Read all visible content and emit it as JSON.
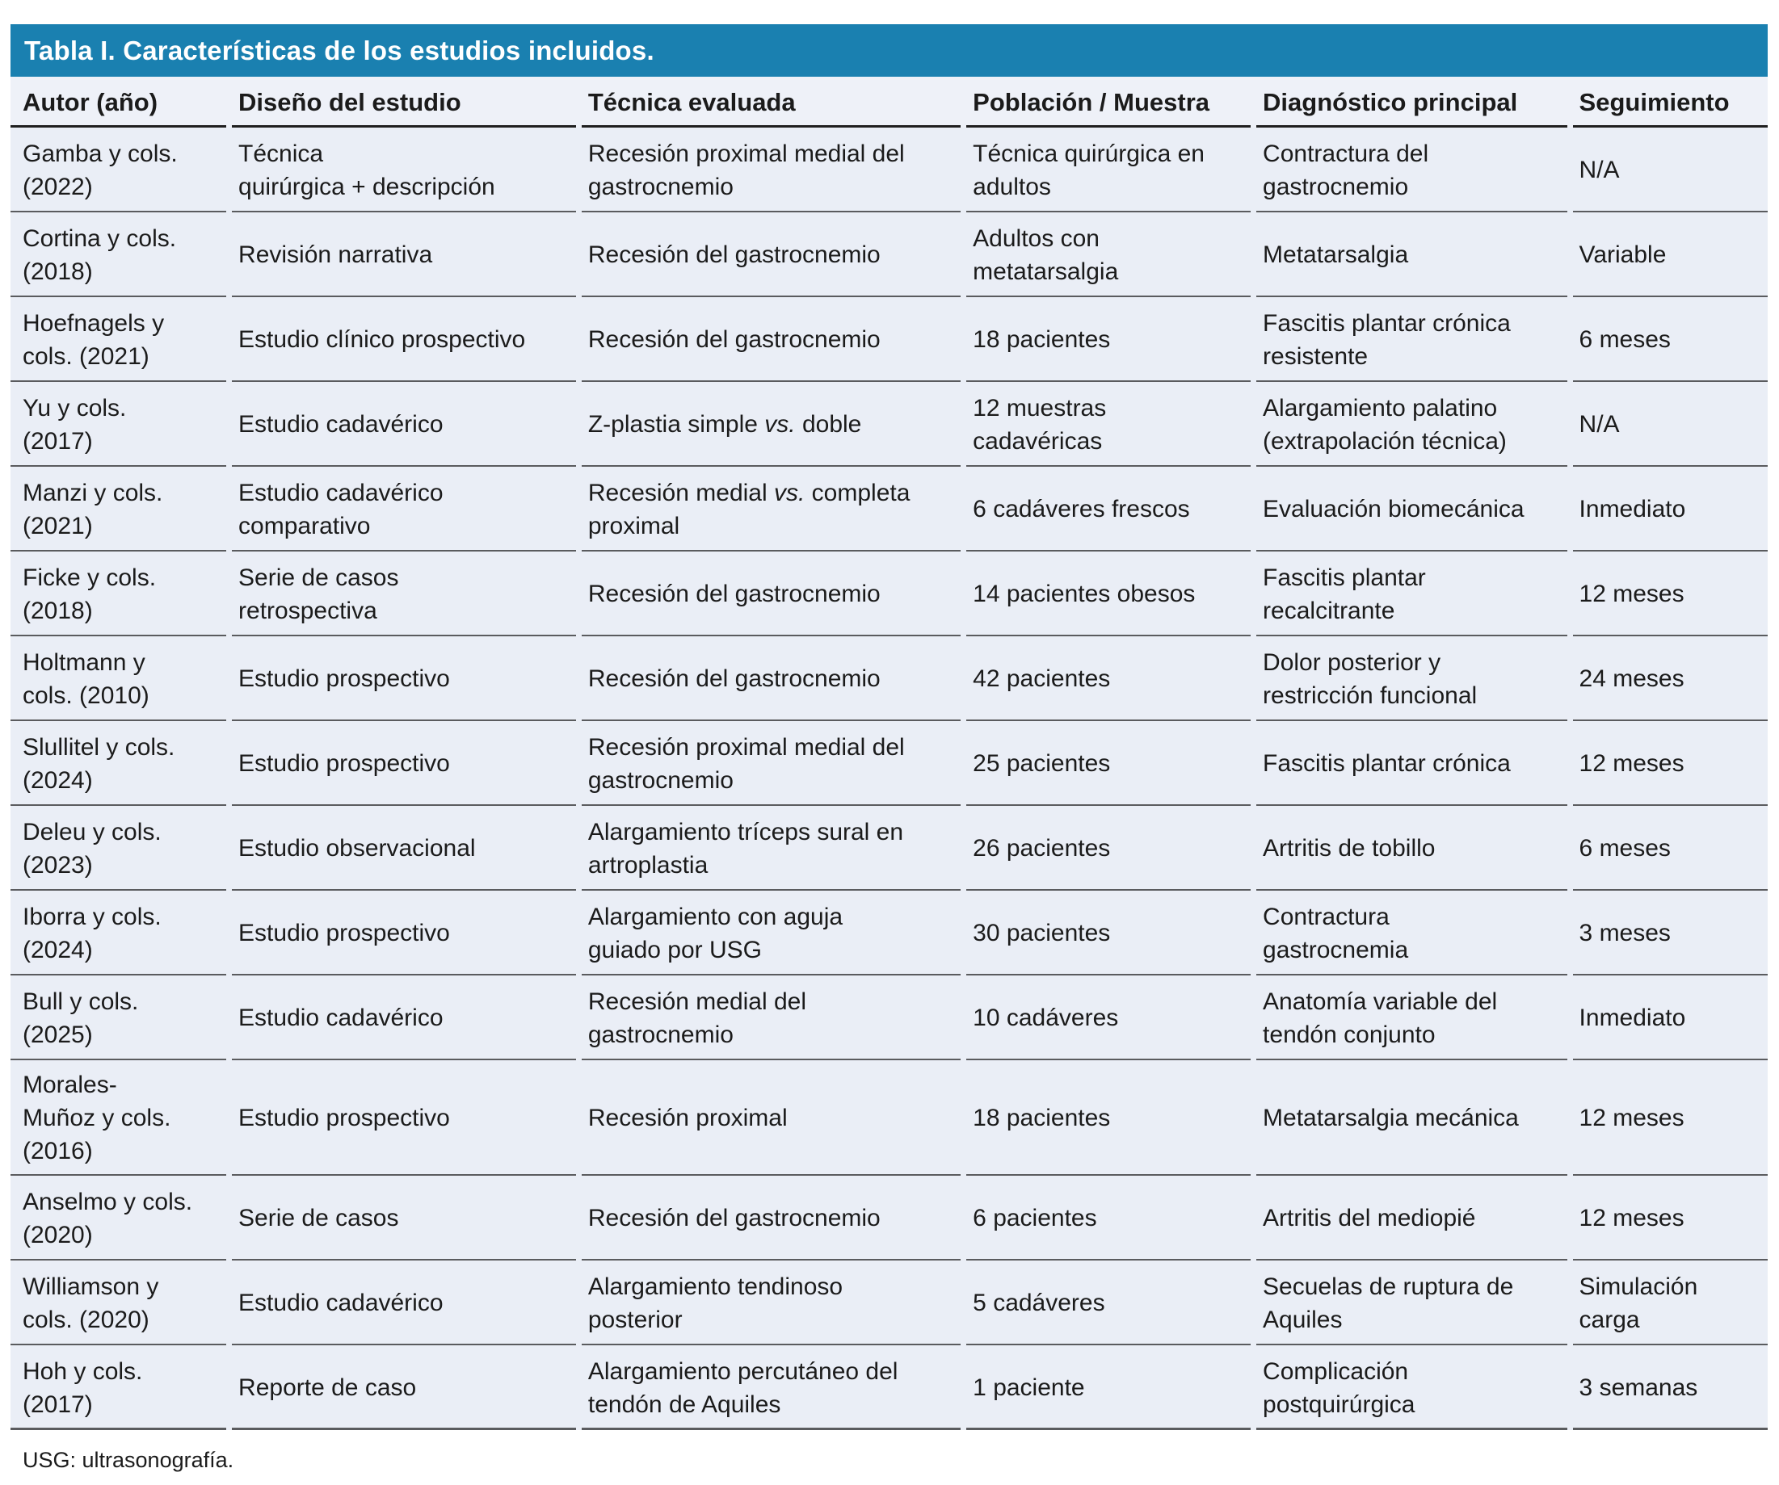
{
  "theme": {
    "accent_blue": "#1a80b0",
    "header_row_bg": "#eef1f8",
    "row_bg": "#eaeef6",
    "divider_gray": "#5a5b5e",
    "header_divider": "#1f1f1f",
    "text_color": "#1b1b1b",
    "title_color": "#ffffff",
    "page_bg": "#ffffff"
  },
  "table": {
    "title": "Tabla I. Características de los estudios incluidos.",
    "columns": [
      "Autor (año)",
      "Diseño del estudio",
      "Técnica evaluada",
      "Población / Muestra",
      "Diagnóstico principal",
      "Seguimiento"
    ],
    "rows": [
      [
        "Gamba y cols.\n(2022)",
        "Técnica\nquirúrgica + descripción",
        "Recesión proximal medial del\ngastrocnemio",
        "Técnica quirúrgica en\nadultos",
        "Contractura del\ngastrocnemio",
        "N/A"
      ],
      [
        "Cortina y cols.\n(2018)",
        "Revisión narrativa",
        "Recesión del gastrocnemio",
        "Adultos con\nmetatarsalgia",
        "Metatarsalgia",
        "Variable"
      ],
      [
        "Hoefnagels y\ncols. (2021)",
        "Estudio clínico prospectivo",
        "Recesión del gastrocnemio",
        "18 pacientes",
        "Fascitis plantar crónica\nresistente",
        "6 meses"
      ],
      [
        "Yu y cols.\n(2017)",
        "Estudio cadavérico",
        "Z-plastia simple vs. doble",
        "12 muestras\ncadavéricas",
        "Alargamiento palatino\n(extrapolación técnica)",
        "N/A"
      ],
      [
        "Manzi y cols.\n(2021)",
        "Estudio cadavérico\ncomparativo",
        "Recesión medial vs. completa\nproximal",
        "6 cadáveres frescos",
        "Evaluación biomecánica",
        "Inmediato"
      ],
      [
        "Ficke y cols.\n(2018)",
        "Serie de casos\nretrospectiva",
        "Recesión del gastrocnemio",
        "14 pacientes obesos",
        "Fascitis plantar\nrecalcitrante",
        "12 meses"
      ],
      [
        "Holtmann y\ncols. (2010)",
        "Estudio prospectivo",
        "Recesión del gastrocnemio",
        "42 pacientes",
        "Dolor posterior y\nrestricción funcional",
        "24 meses"
      ],
      [
        "Slullitel y cols.\n(2024)",
        "Estudio prospectivo",
        "Recesión proximal medial del\ngastrocnemio",
        "25 pacientes",
        "Fascitis plantar crónica",
        "12 meses"
      ],
      [
        "Deleu y cols.\n(2023)",
        "Estudio observacional",
        "Alargamiento tríceps sural en\nartroplastia",
        "26 pacientes",
        "Artritis de tobillo",
        "6 meses"
      ],
      [
        "Iborra y cols.\n(2024)",
        "Estudio prospectivo",
        "Alargamiento con aguja\nguiado por USG",
        "30 pacientes",
        "Contractura\ngastrocnemia",
        "3 meses"
      ],
      [
        "Bull y cols.\n(2025)",
        "Estudio cadavérico",
        "Recesión medial del\ngastrocnemio",
        "10 cadáveres",
        "Anatomía variable del\ntendón conjunto",
        "Inmediato"
      ],
      [
        "Morales-\nMuñoz y cols.\n(2016)",
        "Estudio prospectivo",
        "Recesión proximal",
        "18 pacientes",
        "Metatarsalgia mecánica",
        "12 meses"
      ],
      [
        "Anselmo y cols.\n(2020)",
        "Serie de casos",
        "Recesión del gastrocnemio",
        "6 pacientes",
        "Artritis del mediopié",
        "12 meses"
      ],
      [
        "Williamson y\ncols. (2020)",
        "Estudio cadavérico",
        "Alargamiento tendinoso\nposterior",
        "5 cadáveres",
        "Secuelas de ruptura de\nAquiles",
        "Simulación\ncarga"
      ],
      [
        "Hoh y cols.\n(2017)",
        "Reporte de caso",
        "Alargamiento percutáneo del\ntendón de Aquiles",
        "1 paciente",
        "Complicación\npostquirúrgica",
        "3 semanas"
      ]
    ],
    "footnote": "USG: ultrasonografía."
  }
}
